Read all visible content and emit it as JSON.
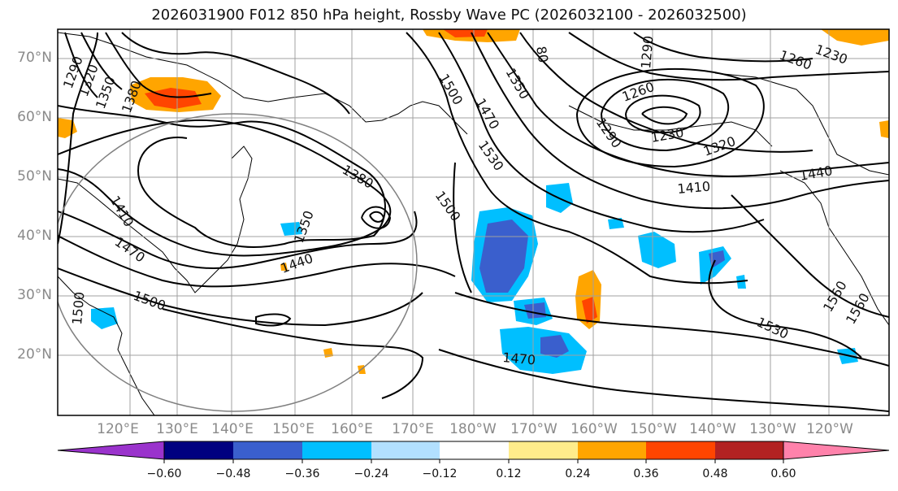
{
  "title": "2026031900 F012 850 hPa height, Rossby Wave PC (2026032100 - 2026032500)",
  "colors": {
    "frame": "#000000",
    "grid": "#a0a0a0",
    "land": "#000000",
    "contour": "#000000",
    "circle": "#808080",
    "shade_bins": [
      "#9a33cc",
      "#000080",
      "#3a5fcd",
      "#00bfff",
      "#b2e0ff",
      "#ffffff",
      "#ffec8b",
      "#ffa500",
      "#ff4500",
      "#b22222",
      "#ff82ab"
    ]
  },
  "lat_labels": [
    "70°N",
    "60°N",
    "50°N",
    "40°N",
    "30°N",
    "20°N"
  ],
  "lon_labels": [
    "120°E",
    "130°E",
    "140°E",
    "150°E",
    "160°E",
    "170°E",
    "180°W",
    "170°W",
    "160°W",
    "150°W",
    "140°W",
    "130°W",
    "120°W"
  ],
  "contour_labels": [
    {
      "text": "1290"
    },
    {
      "text": "1320"
    },
    {
      "text": "1350"
    },
    {
      "text": "1380"
    },
    {
      "text": "1410"
    },
    {
      "text": "1470"
    },
    {
      "text": "1500"
    },
    {
      "text": "1500"
    },
    {
      "text": "1380"
    },
    {
      "text": "1350"
    },
    {
      "text": "1440"
    },
    {
      "text": "1500"
    },
    {
      "text": "1560"
    },
    {
      "text": "1470"
    },
    {
      "text": "1530"
    },
    {
      "text": "1500"
    },
    {
      "text": "1350"
    },
    {
      "text": "80"
    },
    {
      "text": "1290"
    },
    {
      "text": "1260"
    },
    {
      "text": "1260"
    },
    {
      "text": "1230"
    },
    {
      "text": "1290"
    },
    {
      "text": "1320"
    },
    {
      "text": "1410"
    },
    {
      "text": "1440"
    },
    {
      "text": "1560"
    },
    {
      "text": "1530"
    },
    {
      "text": "1470"
    },
    {
      "text": "1230"
    }
  ],
  "colorbar": {
    "ticks": [
      "−0.60",
      "−0.48",
      "−0.36",
      "−0.24",
      "−0.12",
      "0.12",
      "0.24",
      "0.36",
      "0.48",
      "0.60"
    ]
  }
}
